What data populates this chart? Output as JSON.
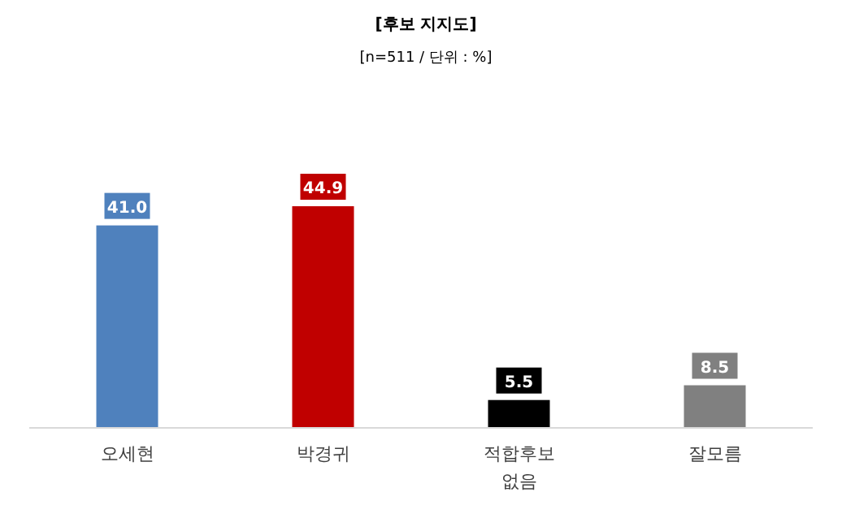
{
  "chart_data": {
    "type": "bar",
    "title": "[후보 지지도]",
    "subtitle": "[n=511 / 단위 : %]",
    "categories": [
      "오세현",
      "박경귀",
      "적합후보 없음",
      "잘모름"
    ],
    "values": [
      41.0,
      44.9,
      5.5,
      8.5
    ],
    "colors": [
      "#4f81bd",
      "#c00000",
      "#000000",
      "#808080"
    ],
    "value_labels": [
      "41.0",
      "44.9",
      "5.5",
      "8.5"
    ]
  }
}
